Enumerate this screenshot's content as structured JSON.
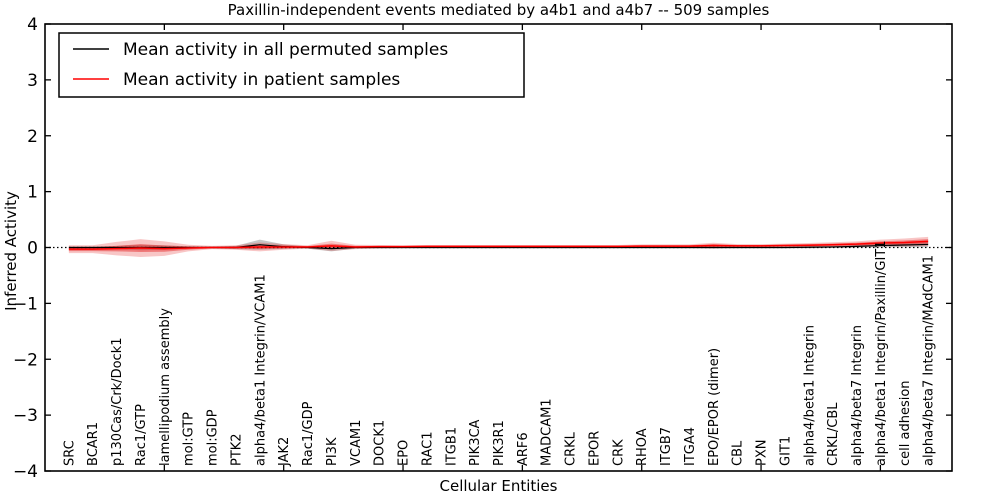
{
  "chart_data": {
    "type": "line",
    "title": "Paxillin-independent events mediated by a4b1 and a4b7 -- 509 samples",
    "xlabel": "Cellular Entities",
    "ylabel": "Inferred Activity",
    "ylim": [
      -4,
      4
    ],
    "yticks": [
      4,
      3,
      2,
      1,
      0,
      -1,
      -2,
      -3,
      -4
    ],
    "x_major_tick_positions": [
      5,
      10,
      15,
      20,
      25,
      30,
      35
    ],
    "grid": false,
    "legend_position": "upper left",
    "zero_line": {
      "y": 0,
      "style": "dotted",
      "color": "#000000"
    },
    "categories": [
      "SRC",
      "BCAR1",
      "p130Cas/Crk/Dock1",
      "Rac1/GTP",
      "lamellipodium assembly",
      "mol:GTP",
      "mol:GDP",
      "PTK2",
      "alpha4/beta1 Integrin/VCAM1",
      "JAK2",
      "Rac1/GDP",
      "PI3K",
      "VCAM1",
      "DOCK1",
      "EPO",
      "RAC1",
      "ITGB1",
      "PIK3CA",
      "PIK3R1",
      "ARF6",
      "MADCAM1",
      "CRKL",
      "EPOR",
      "CRK",
      "RHOA",
      "ITGB7",
      "ITGA4",
      "EPO/EPOR (dimer)",
      "CBL",
      "PXN",
      "GIT1",
      "alpha4/beta1 Integrin",
      "CRKL/CBL",
      "alpha4/beta7 Integrin",
      "alpha4/beta1 Integrin/Paxillin/GIT1",
      "cell adhesion",
      "alpha4/beta7 Integrin/MAdCAM1"
    ],
    "series": [
      {
        "name": "Mean activity in all permuted samples",
        "color": "#000000",
        "values": [
          0,
          0,
          0,
          0,
          0,
          0,
          0,
          0,
          0.05,
          0.015,
          0,
          -0.02,
          0,
          0,
          0,
          0,
          0,
          0,
          0,
          0,
          0,
          0,
          0,
          0,
          0,
          0,
          0,
          0,
          0,
          0,
          0,
          0.005,
          0.01,
          0.02,
          0.035,
          0.045,
          0.055
        ]
      },
      {
        "name": "Mean activity in patient samples",
        "color": "#ff0000",
        "values": [
          -0.03,
          -0.03,
          -0.02,
          -0.01,
          -0.02,
          -0.01,
          0,
          0,
          0.01,
          0.01,
          0.01,
          0.03,
          0.01,
          0.015,
          0.015,
          0.02,
          0.02,
          0.02,
          0.02,
          0.02,
          0.02,
          0.02,
          0.02,
          0.02,
          0.025,
          0.025,
          0.025,
          0.035,
          0.03,
          0.03,
          0.035,
          0.04,
          0.05,
          0.06,
          0.08,
          0.09,
          0.11
        ]
      }
    ],
    "bands": [
      {
        "name": "permuted-sample spread",
        "color": "rgba(0,0,0,0.22)",
        "center_series": 0,
        "half_widths": [
          0.02,
          0.02,
          0.03,
          0.05,
          0.04,
          0.02,
          0.015,
          0.03,
          0.09,
          0.04,
          0.02,
          0.05,
          0.02,
          0.015,
          0.015,
          0.015,
          0.015,
          0.015,
          0.015,
          0.015,
          0.015,
          0.015,
          0.015,
          0.015,
          0.015,
          0.015,
          0.015,
          0.02,
          0.015,
          0.015,
          0.015,
          0.02,
          0.02,
          0.025,
          0.03,
          0.04,
          0.05
        ]
      },
      {
        "name": "patient-sample spread outer",
        "color": "rgba(229,26,26,0.25)",
        "center_series": 1,
        "half_widths": [
          0.07,
          0.07,
          0.12,
          0.16,
          0.13,
          0.06,
          0.03,
          0.04,
          0.08,
          0.05,
          0.03,
          0.09,
          0.04,
          0.03,
          0.025,
          0.025,
          0.025,
          0.025,
          0.025,
          0.025,
          0.025,
          0.025,
          0.025,
          0.025,
          0.03,
          0.03,
          0.03,
          0.05,
          0.03,
          0.03,
          0.035,
          0.04,
          0.045,
          0.05,
          0.06,
          0.07,
          0.08
        ]
      },
      {
        "name": "patient-sample spread inner",
        "color": "rgba(229,26,26,0.45)",
        "center_series": 1,
        "half_widths": [
          0.035,
          0.035,
          0.05,
          0.07,
          0.055,
          0.03,
          0.015,
          0.02,
          0.035,
          0.025,
          0.015,
          0.04,
          0.02,
          0.015,
          0.012,
          0.012,
          0.012,
          0.012,
          0.012,
          0.012,
          0.012,
          0.012,
          0.012,
          0.012,
          0.015,
          0.015,
          0.015,
          0.025,
          0.015,
          0.015,
          0.018,
          0.02,
          0.022,
          0.025,
          0.03,
          0.035,
          0.04
        ]
      }
    ]
  },
  "legend": {
    "items": [
      {
        "label": "Mean activity in all permuted samples"
      },
      {
        "label": "Mean activity in patient samples"
      }
    ]
  }
}
